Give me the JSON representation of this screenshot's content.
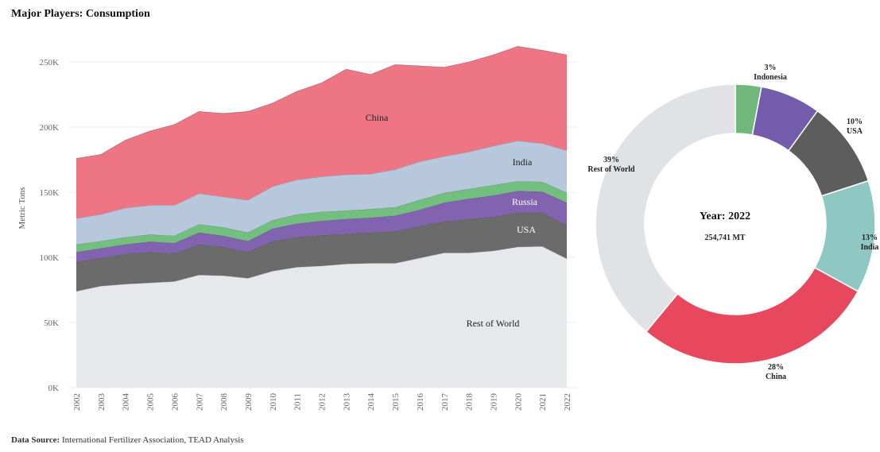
{
  "header": {
    "title": "Major Players: Consumption"
  },
  "footer": {
    "source_label": "Data Source:",
    "source_text": "International Fertilizer Association, TEAD Analysis"
  },
  "chart_data": [
    {
      "type": "area",
      "stacked": true,
      "title": "",
      "xlabel": "",
      "ylabel": "Metric Tons",
      "ylim": [
        0,
        260000
      ],
      "yticks": [
        0,
        50000,
        100000,
        150000,
        200000,
        250000
      ],
      "ytick_labels": [
        "0K",
        "50K",
        "100K",
        "150K",
        "200K",
        "250K"
      ],
      "grid": true,
      "categories": [
        "2002",
        "2003",
        "2004",
        "2005",
        "2006",
        "2007",
        "2008",
        "2009",
        "2010",
        "2011",
        "2012",
        "2013",
        "2014",
        "2015",
        "2016",
        "2017",
        "2018",
        "2019",
        "2020",
        "2021",
        "2022"
      ],
      "series": [
        {
          "name": "Rest of World",
          "color": "#e6e7eb",
          "values": [
            74000,
            78000,
            79500,
            80500,
            81500,
            86500,
            86000,
            84000,
            89500,
            92500,
            93500,
            95000,
            95500,
            95500,
            99500,
            103500,
            103500,
            105000,
            108000,
            108500,
            99000
          ]
        },
        {
          "name": "USA",
          "color": "#636363",
          "values": [
            22500,
            21500,
            23000,
            23500,
            21500,
            23500,
            22000,
            20000,
            23000,
            23000,
            23500,
            23000,
            23500,
            24500,
            24500,
            24000,
            26000,
            26000,
            26500,
            26000,
            25500
          ]
        },
        {
          "name": "Russia",
          "color": "#7a5bab",
          "values": [
            7500,
            7500,
            7500,
            8000,
            8000,
            9000,
            8500,
            8500,
            9500,
            10500,
            11000,
            11500,
            11500,
            12000,
            12500,
            14500,
            15500,
            16500,
            16500,
            16000,
            17500
          ]
        },
        {
          "name": "",
          "color": "#6cbc78",
          "values": [
            6000,
            5500,
            5500,
            5500,
            5500,
            6500,
            6500,
            6500,
            6500,
            7000,
            7000,
            6500,
            6500,
            6500,
            7500,
            7500,
            7500,
            8000,
            7500,
            7500,
            7500
          ]
        },
        {
          "name": "India",
          "color": "#b3c4da",
          "values": [
            20000,
            20500,
            22500,
            22500,
            23500,
            23500,
            23500,
            25000,
            26000,
            26500,
            27000,
            27500,
            27000,
            29000,
            29500,
            28000,
            28500,
            30000,
            31000,
            29500,
            32500
          ]
        },
        {
          "name": "China",
          "color": "#ed6e7d",
          "values": [
            46000,
            46000,
            52000,
            57000,
            62000,
            63000,
            64000,
            68000,
            64000,
            68000,
            72000,
            81000,
            76500,
            80500,
            73500,
            68500,
            69000,
            70000,
            72500,
            71500,
            73500
          ]
        }
      ],
      "labels": [
        {
          "text": "China",
          "color": "#222"
        },
        {
          "text": "India",
          "color": "#222"
        },
        {
          "text": "Russia",
          "color": "#ffffff"
        },
        {
          "text": "USA",
          "color": "#ffffff"
        },
        {
          "text": "Rest of World",
          "color": "#222"
        }
      ]
    },
    {
      "type": "pie",
      "donut": true,
      "center_title": "Year: 2022",
      "center_value": "254,741 MT",
      "slices": [
        {
          "name": "Indonesia",
          "percent": 3,
          "label": "3%",
          "color": "#72b77c"
        },
        {
          "name": "",
          "percent": 7,
          "label": "",
          "color": "#735cab"
        },
        {
          "name": "USA",
          "percent": 10,
          "label": "10%",
          "color": "#5d5d5d"
        },
        {
          "name": "India",
          "percent": 13,
          "label": "13%",
          "color": "#8fc7c2"
        },
        {
          "name": "China",
          "percent": 28,
          "label": "28%",
          "color": "#e8485e"
        },
        {
          "name": "Rest of World",
          "percent": 39,
          "label": "39%",
          "color": "#e1e2e6"
        }
      ]
    }
  ]
}
